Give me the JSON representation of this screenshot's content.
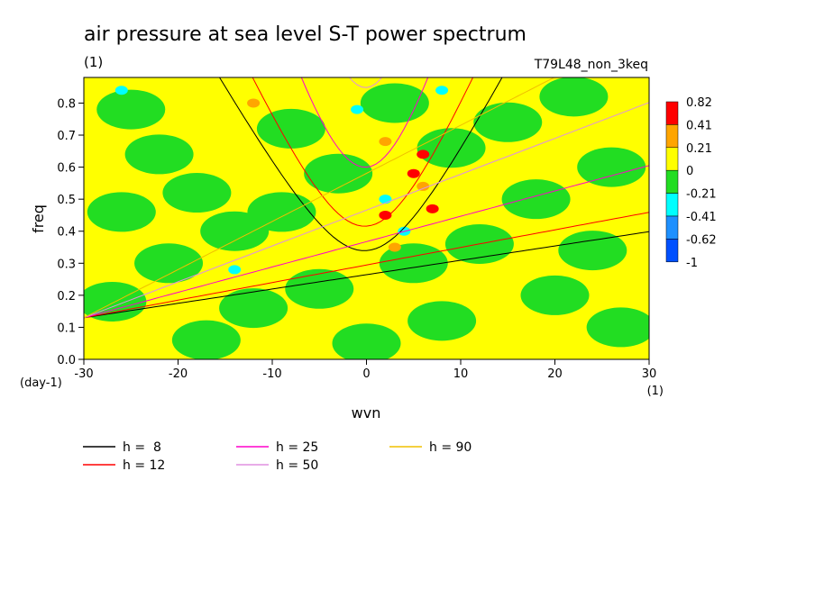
{
  "chart_data": {
    "type": "heatmap",
    "title": "air pressure at sea level S-T power spectrum",
    "subtitle": "(1)",
    "run_label": "T79L48_non_3keq",
    "xlabel": "wvn",
    "ylabel": "freq",
    "x_units": "(1)",
    "y_units": "(day-1)",
    "xlim": [
      -30,
      30
    ],
    "ylim": [
      0,
      0.88
    ],
    "x_ticks": [
      -30,
      -20,
      -10,
      0,
      10,
      20,
      30
    ],
    "x_tick_labels": [
      "-30",
      "-20",
      "-10",
      "0",
      "10",
      "20",
      "30"
    ],
    "y_ticks": [
      0.0,
      0.1,
      0.2,
      0.3,
      0.4,
      0.5,
      0.6,
      0.7,
      0.8
    ],
    "y_tick_labels": [
      "0.0",
      "0.1",
      "0.2",
      "0.3",
      "0.4",
      "0.5",
      "0.6",
      "0.7",
      "0.8"
    ],
    "colorbar": {
      "levels": [
        "0.82",
        "0.41",
        "0.21",
        "0",
        "-0.21",
        "-0.41",
        "-0.62",
        "-1"
      ],
      "colors": [
        "#ff0000",
        "#ffa500",
        "#ffff00",
        "#22dd22",
        "#00ffff",
        "#1e90ff",
        "#0050ff"
      ]
    },
    "background_color": "#ffff00",
    "field_blobs": [
      {
        "wvn": -25,
        "freq": 0.78,
        "level": "green"
      },
      {
        "wvn": -22,
        "freq": 0.64,
        "level": "green"
      },
      {
        "wvn": -18,
        "freq": 0.52,
        "level": "green"
      },
      {
        "wvn": -26,
        "freq": 0.46,
        "level": "green"
      },
      {
        "wvn": -14,
        "freq": 0.4,
        "level": "green"
      },
      {
        "wvn": -21,
        "freq": 0.3,
        "level": "green"
      },
      {
        "wvn": -27,
        "freq": 0.18,
        "level": "green"
      },
      {
        "wvn": -12,
        "freq": 0.16,
        "level": "green"
      },
      {
        "wvn": -17,
        "freq": 0.06,
        "level": "green"
      },
      {
        "wvn": -5,
        "freq": 0.22,
        "level": "green"
      },
      {
        "wvn": -8,
        "freq": 0.72,
        "level": "green"
      },
      {
        "wvn": -3,
        "freq": 0.58,
        "level": "green"
      },
      {
        "wvn": 3,
        "freq": 0.8,
        "level": "green"
      },
      {
        "wvn": 9,
        "freq": 0.66,
        "level": "green"
      },
      {
        "wvn": 15,
        "freq": 0.74,
        "level": "green"
      },
      {
        "wvn": 22,
        "freq": 0.82,
        "level": "green"
      },
      {
        "wvn": 26,
        "freq": 0.6,
        "level": "green"
      },
      {
        "wvn": 18,
        "freq": 0.5,
        "level": "green"
      },
      {
        "wvn": 12,
        "freq": 0.36,
        "level": "green"
      },
      {
        "wvn": 24,
        "freq": 0.34,
        "level": "green"
      },
      {
        "wvn": 20,
        "freq": 0.2,
        "level": "green"
      },
      {
        "wvn": 27,
        "freq": 0.1,
        "level": "green"
      },
      {
        "wvn": 8,
        "freq": 0.12,
        "level": "green"
      },
      {
        "wvn": 0,
        "freq": 0.05,
        "level": "green"
      },
      {
        "wvn": 5,
        "freq": 0.3,
        "level": "green"
      },
      {
        "wvn": -9,
        "freq": 0.46,
        "level": "green"
      },
      {
        "wvn": 2,
        "freq": 0.5,
        "level": "cyan"
      },
      {
        "wvn": 4,
        "freq": 0.4,
        "level": "cyan"
      },
      {
        "wvn": -1,
        "freq": 0.78,
        "level": "cyan"
      },
      {
        "wvn": -14,
        "freq": 0.28,
        "level": "cyan"
      },
      {
        "wvn": -26,
        "freq": 0.84,
        "level": "cyan"
      },
      {
        "wvn": 8,
        "freq": 0.84,
        "level": "cyan"
      },
      {
        "wvn": 6,
        "freq": 0.64,
        "level": "red"
      },
      {
        "wvn": 5,
        "freq": 0.58,
        "level": "red"
      },
      {
        "wvn": 2,
        "freq": 0.45,
        "level": "red"
      },
      {
        "wvn": 7,
        "freq": 0.47,
        "level": "red"
      },
      {
        "wvn": 2,
        "freq": 0.68,
        "level": "orange"
      },
      {
        "wvn": 6,
        "freq": 0.54,
        "level": "orange"
      },
      {
        "wvn": -12,
        "freq": 0.8,
        "level": "orange"
      },
      {
        "wvn": 3,
        "freq": 0.35,
        "level": "orange"
      }
    ],
    "curves": [
      {
        "name": "h =  8",
        "family": "symmetric",
        "h": 8,
        "color": "#000000"
      },
      {
        "name": "h = 12",
        "family": "symmetric",
        "h": 12,
        "color": "#ff0000"
      },
      {
        "name": "h = 25",
        "family": "symmetric",
        "h": 25,
        "color": "#ff00cc"
      },
      {
        "name": "h = 50",
        "family": "symmetric",
        "h": 50,
        "color": "#e090e0"
      },
      {
        "name": "h = 90",
        "family": "symmetric",
        "h": 90,
        "color": "#f0c000"
      }
    ],
    "legend": [
      {
        "label": "h =  8",
        "color": "#000000"
      },
      {
        "label": "h = 25",
        "color": "#ff00cc"
      },
      {
        "label": "h = 90",
        "color": "#f0c000"
      },
      {
        "label": "h = 12",
        "color": "#ff0000"
      },
      {
        "label": "h = 50",
        "color": "#e090e0"
      }
    ]
  }
}
